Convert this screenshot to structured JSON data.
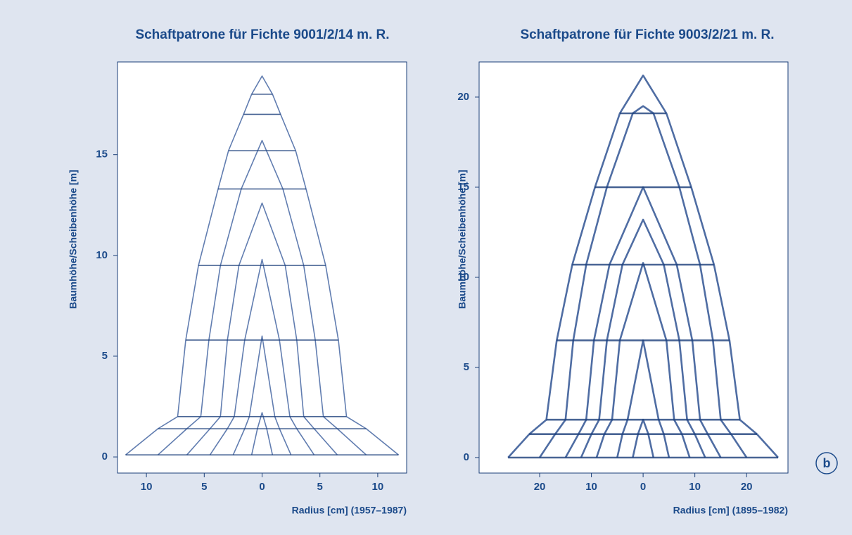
{
  "chart_data": [
    {
      "type": "line",
      "title": "Schaftpatrone für Fichte 9001/2/14 m. R.",
      "xlabel": "Radius [cm] (1957–1987)",
      "ylabel": "Baumhöhe/Scheibenhöhe [m]",
      "xlim": [
        -12.5,
        12.5
      ],
      "ylim": [
        -0.8,
        19.6
      ],
      "xticks": [
        {
          "value": -10,
          "label": "10"
        },
        {
          "value": -5,
          "label": "5"
        },
        0,
        5,
        10
      ],
      "yticks": [
        0,
        5,
        10,
        15
      ],
      "series": [
        {
          "color": "#3a5c9c",
          "x": [
            -11.8,
            -9,
            -7.3,
            -6.6,
            -5.5,
            -3.8,
            -2.9,
            -1.6,
            -0.9,
            0,
            0.9,
            1.6,
            2.9,
            3.8,
            5.5,
            6.6,
            7.3,
            9,
            11.8
          ],
          "values": [
            0.1,
            1.4,
            2,
            5.8,
            9.5,
            13.3,
            15.2,
            17,
            18,
            18.9,
            18,
            17,
            15.2,
            13.3,
            9.5,
            5.8,
            2,
            1.4,
            0.1
          ]
        },
        {
          "color": "#3a5c9c",
          "x": [
            -9,
            -6.5,
            -5.3,
            -4.6,
            -3.6,
            -1.8,
            0,
            1.8,
            3.6,
            4.6,
            5.3,
            6.5,
            9
          ],
          "values": [
            0.1,
            1.4,
            2,
            5.8,
            9.5,
            13.3,
            15.7,
            13.3,
            9.5,
            5.8,
            2,
            1.4,
            0.1
          ]
        },
        {
          "color": "#3a5c9c",
          "x": [
            -6.5,
            -4.5,
            -3.6,
            -3,
            -2,
            0,
            2,
            3,
            3.6,
            4.5,
            6.5
          ],
          "values": [
            0.1,
            1.4,
            2,
            5.8,
            9.5,
            12.6,
            9.5,
            5.8,
            2,
            1.4,
            0.1
          ]
        },
        {
          "color": "#3a5c9c",
          "x": [
            -4.5,
            -3,
            -2.4,
            -1.5,
            0,
            1.5,
            2.4,
            3,
            4.5
          ],
          "values": [
            0.1,
            1.4,
            2,
            5.8,
            9.8,
            5.8,
            2,
            1.4,
            0.1
          ]
        },
        {
          "color": "#3a5c9c",
          "x": [
            -2.5,
            -1.5,
            -1.1,
            0,
            1.1,
            1.5,
            2.5
          ],
          "values": [
            0.1,
            1.4,
            2,
            6,
            2,
            1.4,
            0.1
          ]
        },
        {
          "color": "#3a5c9c",
          "x": [
            -0.9,
            -0.4,
            0,
            0.4,
            0.9
          ],
          "values": [
            0.1,
            1.4,
            2.2,
            1.4,
            0.1
          ]
        },
        {
          "color": "#1c3f7a",
          "x": [
            -11.8,
            11.8
          ],
          "values": [
            0.1,
            0.1
          ]
        },
        {
          "color": "#1c3f7a",
          "x": [
            -9,
            9
          ],
          "values": [
            1.4,
            1.4
          ]
        },
        {
          "color": "#1c3f7a",
          "x": [
            -7.3,
            7.3
          ],
          "values": [
            2,
            2
          ]
        },
        {
          "color": "#1c3f7a",
          "x": [
            -6.6,
            6.6
          ],
          "values": [
            5.8,
            5.8
          ]
        },
        {
          "color": "#1c3f7a",
          "x": [
            -5.5,
            5.5
          ],
          "values": [
            9.5,
            9.5
          ]
        },
        {
          "color": "#1c3f7a",
          "x": [
            -3.8,
            3.8
          ],
          "values": [
            13.3,
            13.3
          ]
        },
        {
          "color": "#1c3f7a",
          "x": [
            -2.9,
            2.9
          ],
          "values": [
            15.2,
            15.2
          ]
        },
        {
          "color": "#1c3f7a",
          "x": [
            -1.6,
            1.6
          ],
          "values": [
            17,
            17
          ]
        },
        {
          "color": "#1c3f7a",
          "x": [
            -0.9,
            0.9
          ],
          "values": [
            18,
            18
          ]
        }
      ]
    },
    {
      "type": "line",
      "title": "Schaftpatrone für Fichte 9003/2/21 m. R.",
      "xlabel": "Radius [cm] (1895–1982)",
      "ylabel": "Baumhöhe/Scheibenhöhe [m]",
      "xlim": [
        -31.7,
        28
      ],
      "ylim": [
        -0.86,
        21.95
      ],
      "xticks": [
        {
          "value": -20,
          "label": "20"
        },
        {
          "value": -10,
          "label": "10"
        },
        0,
        10,
        20
      ],
      "yticks": [
        0,
        5,
        10,
        15,
        20
      ],
      "series": [
        {
          "color": "#23498c",
          "x": [
            -26.1,
            -22,
            -18.7,
            -16.7,
            -13.7,
            -9.3,
            -4.5,
            0,
            4.5,
            9.3,
            13.7,
            16.7,
            18.7,
            22,
            26.1
          ],
          "values": [
            0,
            1.3,
            2.1,
            6.5,
            10.7,
            15,
            19.1,
            21.2,
            19.1,
            15,
            10.7,
            6.5,
            2.1,
            1.3,
            0
          ]
        },
        {
          "color": "#23498c",
          "x": [
            -20,
            -17,
            -15,
            -13.5,
            -11,
            -7,
            -2,
            0,
            2,
            7,
            11,
            13.5,
            15,
            17,
            20
          ],
          "values": [
            0,
            1.3,
            2.1,
            6.5,
            10.7,
            15,
            19.1,
            19.5,
            19.1,
            15,
            10.7,
            6.5,
            2.1,
            1.3,
            0
          ]
        },
        {
          "color": "#23498c",
          "x": [
            -15,
            -12.5,
            -11,
            -9.5,
            -6.5,
            0,
            6.5,
            9.5,
            11,
            12.5,
            15
          ],
          "values": [
            0,
            1.3,
            2.1,
            6.5,
            10.7,
            15,
            10.7,
            6.5,
            2.1,
            1.3,
            0
          ]
        },
        {
          "color": "#23498c",
          "x": [
            -12,
            -10,
            -8.5,
            -7,
            -4,
            0,
            4,
            7,
            8.5,
            10,
            12
          ],
          "values": [
            0,
            1.3,
            2.1,
            6.5,
            10.7,
            13.2,
            10.7,
            6.5,
            2.1,
            1.3,
            0
          ]
        },
        {
          "color": "#23498c",
          "x": [
            -9,
            -7.5,
            -6,
            -4.5,
            0,
            4.5,
            6,
            7.5,
            9
          ],
          "values": [
            0,
            1.3,
            2.1,
            6.5,
            10.8,
            6.5,
            2.1,
            1.3,
            0
          ]
        },
        {
          "color": "#23498c",
          "x": [
            -5,
            -4,
            -3,
            0,
            3,
            4,
            5
          ],
          "values": [
            0,
            1.3,
            2.1,
            6.5,
            2.1,
            1.3,
            0
          ]
        },
        {
          "color": "#23498c",
          "x": [
            -2,
            -1,
            0,
            1,
            2
          ],
          "values": [
            0,
            1.3,
            2.1,
            1.3,
            0
          ]
        },
        {
          "color": "#1c3f7a",
          "x": [
            -26.1,
            26.1
          ],
          "values": [
            0,
            0
          ]
        },
        {
          "color": "#1c3f7a",
          "x": [
            -22,
            22
          ],
          "values": [
            1.3,
            1.3
          ]
        },
        {
          "color": "#1c3f7a",
          "x": [
            -18.7,
            18.7
          ],
          "values": [
            2.1,
            2.1
          ]
        },
        {
          "color": "#1c3f7a",
          "x": [
            -16.7,
            16.7
          ],
          "values": [
            6.5,
            6.5
          ]
        },
        {
          "color": "#1c3f7a",
          "x": [
            -13.7,
            13.7
          ],
          "values": [
            10.7,
            10.7
          ]
        },
        {
          "color": "#1c3f7a",
          "x": [
            -9.3,
            9.3
          ],
          "values": [
            15,
            15
          ]
        },
        {
          "color": "#1c3f7a",
          "x": [
            -4.5,
            4.5
          ],
          "values": [
            19.1,
            19.1
          ]
        }
      ]
    }
  ],
  "panel_label": "b"
}
